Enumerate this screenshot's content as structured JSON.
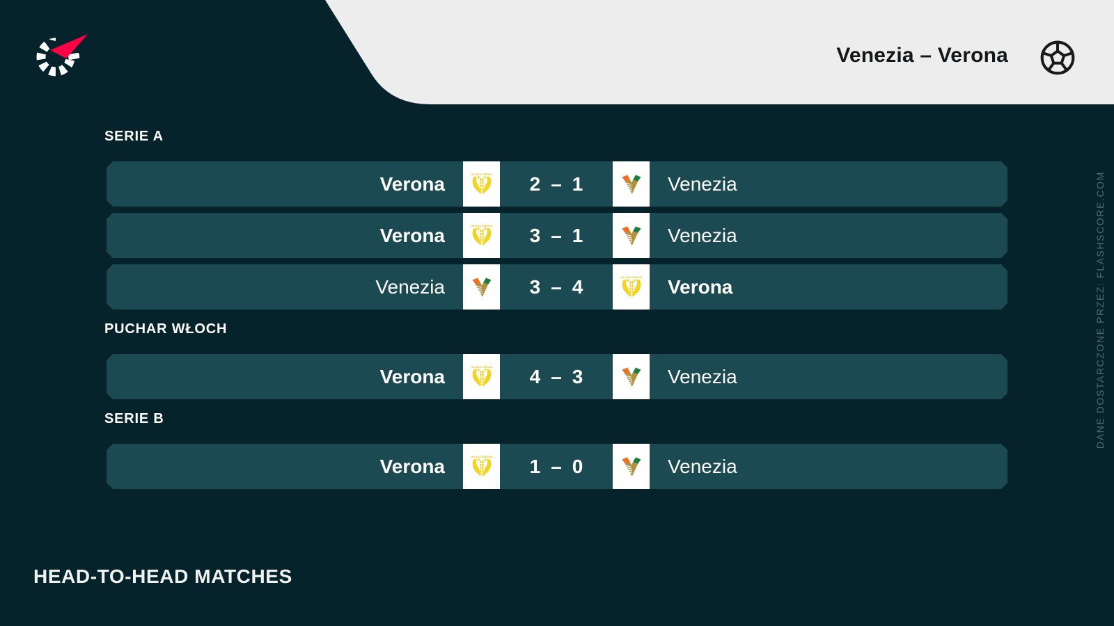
{
  "colors": {
    "background": "#06222B",
    "row_background": "#1B4A52",
    "header_panel": "#EDEDED",
    "accent_red": "#FF0046",
    "title_text": "#14181B",
    "row_text": "#FFFFFF",
    "watermark_text": "#4F6D75",
    "logo_box": "#FFFFFF",
    "verona_yellow": "#F4D31C",
    "venezia_orange": "#F26F21",
    "venezia_green": "#1E7D3E",
    "venezia_gold": "#B3903F"
  },
  "header": {
    "title": "Venezia – Verona",
    "brand_icon": "flashscore-logo",
    "sport_icon": "football-icon"
  },
  "watermark_text": "DANE DOSTARCZONE PRZEZ: FLASHSCORE.COM",
  "footer": {
    "heading": "HEAD-TO-HEAD MATCHES"
  },
  "score_separator": "–",
  "sections": [
    {
      "label": "SERIE A",
      "matches": [
        {
          "home": "Verona",
          "away": "Venezia",
          "home_score": "2",
          "away_score": "1",
          "winner": "home",
          "home_logo": "verona-crest",
          "away_logo": "venezia-crest"
        },
        {
          "home": "Verona",
          "away": "Venezia",
          "home_score": "3",
          "away_score": "1",
          "winner": "home",
          "home_logo": "verona-crest",
          "away_logo": "venezia-crest"
        },
        {
          "home": "Venezia",
          "away": "Verona",
          "home_score": "3",
          "away_score": "4",
          "winner": "away",
          "home_logo": "venezia-crest",
          "away_logo": "verona-crest"
        }
      ]
    },
    {
      "label": "PUCHAR WŁOCH",
      "matches": [
        {
          "home": "Verona",
          "away": "Venezia",
          "home_score": "4",
          "away_score": "3",
          "winner": "home",
          "home_logo": "verona-crest",
          "away_logo": "venezia-crest"
        }
      ]
    },
    {
      "label": "SERIE B",
      "matches": [
        {
          "home": "Verona",
          "away": "Venezia",
          "home_score": "1",
          "away_score": "0",
          "winner": "home",
          "home_logo": "verona-crest",
          "away_logo": "venezia-crest"
        }
      ]
    }
  ]
}
